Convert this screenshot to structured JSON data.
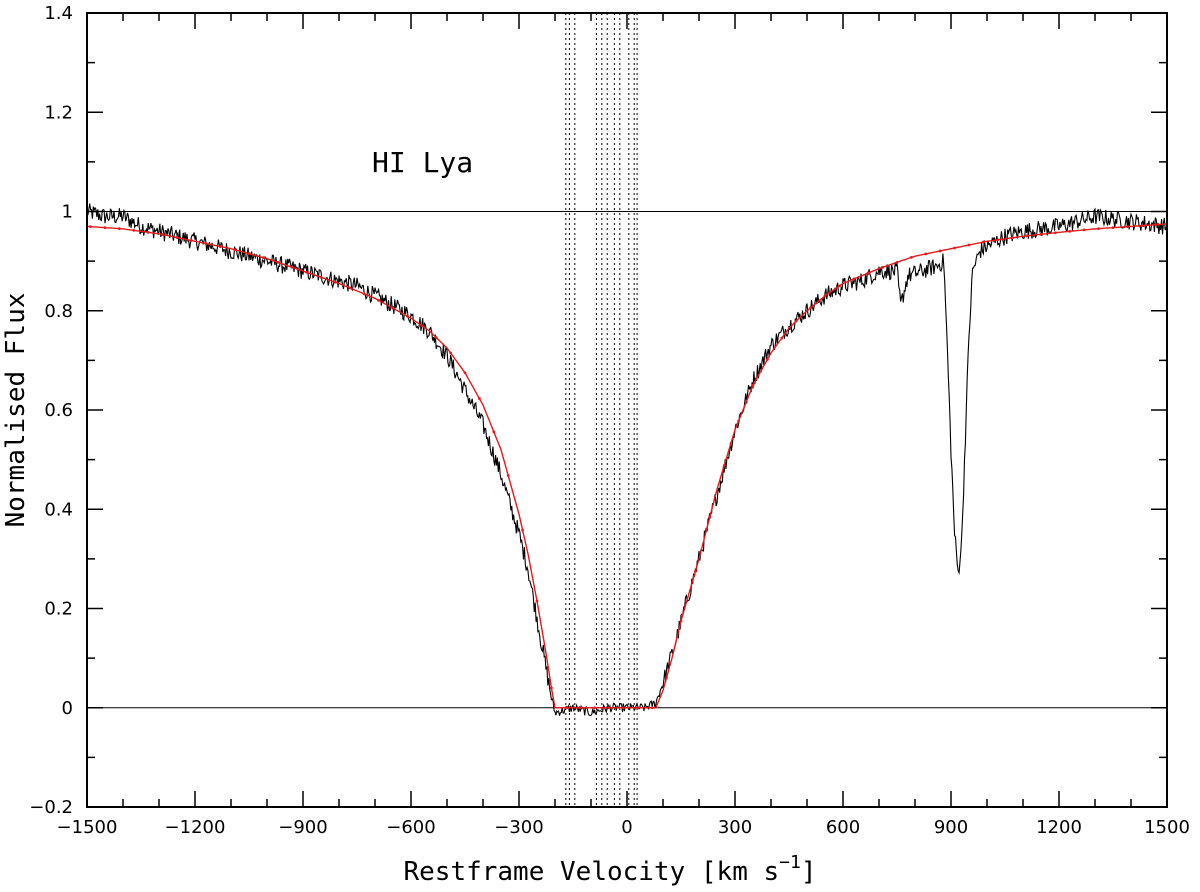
{
  "chart_data": {
    "type": "line",
    "xlabel_main": "Restframe Velocity [km s",
    "xlabel_sup": "−1",
    "xlabel_end": "]",
    "ylabel": "Normalised Flux",
    "annotation": "HI Lya",
    "xlim": [
      -1500,
      1500
    ],
    "ylim": [
      -0.2,
      1.4
    ],
    "x_ticks": [
      -1500,
      -1200,
      -900,
      -600,
      -300,
      0,
      300,
      600,
      900,
      1200,
      1500
    ],
    "x_tick_labels": [
      "−1500",
      "−1200",
      "−900",
      "−600",
      "−300",
      "0",
      "300",
      "600",
      "900",
      "1200",
      "1500"
    ],
    "y_ticks": [
      -0.2,
      0,
      0.2,
      0.4,
      0.6,
      0.8,
      1,
      1.2,
      1.4
    ],
    "y_tick_labels": [
      "−0.2",
      "0",
      "0.2",
      "0.4",
      "0.6",
      "0.8",
      "1",
      "1.2",
      "1.4"
    ],
    "reference_lines": [
      0,
      1
    ],
    "component_velocities": [
      -170,
      -160,
      -145,
      -85,
      -70,
      -55,
      -35,
      -20,
      5,
      20,
      28
    ],
    "series": [
      {
        "role": "observed",
        "color": "#000000",
        "points": [
          [
            -1500,
            1.0
          ],
          [
            -1450,
            0.99
          ],
          [
            -1400,
            0.99
          ],
          [
            -1350,
            0.97
          ],
          [
            -1300,
            0.96
          ],
          [
            -1250,
            0.95
          ],
          [
            -1200,
            0.94
          ],
          [
            -1150,
            0.93
          ],
          [
            -1100,
            0.92
          ],
          [
            -1050,
            0.91
          ],
          [
            -1000,
            0.9
          ],
          [
            -950,
            0.89
          ],
          [
            -900,
            0.88
          ],
          [
            -850,
            0.87
          ],
          [
            -800,
            0.86
          ],
          [
            -750,
            0.85
          ],
          [
            -700,
            0.83
          ],
          [
            -650,
            0.81
          ],
          [
            -600,
            0.79
          ],
          [
            -550,
            0.76
          ],
          [
            -500,
            0.71
          ],
          [
            -450,
            0.64
          ],
          [
            -400,
            0.57
          ],
          [
            -350,
            0.47
          ],
          [
            -300,
            0.35
          ],
          [
            -275,
            0.28
          ],
          [
            -250,
            0.18
          ],
          [
            -225,
            0.08
          ],
          [
            -210,
            0.02
          ],
          [
            -200,
            -0.01
          ],
          [
            -150,
            0.0
          ],
          [
            -100,
            -0.01
          ],
          [
            -50,
            0.0
          ],
          [
            0,
            0.0
          ],
          [
            50,
            0.0
          ],
          [
            80,
            0.01
          ],
          [
            100,
            0.05
          ],
          [
            130,
            0.12
          ],
          [
            160,
            0.2
          ],
          [
            200,
            0.3
          ],
          [
            250,
            0.43
          ],
          [
            300,
            0.56
          ],
          [
            350,
            0.66
          ],
          [
            400,
            0.73
          ],
          [
            450,
            0.77
          ],
          [
            500,
            0.8
          ],
          [
            550,
            0.83
          ],
          [
            600,
            0.85
          ],
          [
            650,
            0.86
          ],
          [
            700,
            0.88
          ],
          [
            750,
            0.88
          ],
          [
            760,
            0.81
          ],
          [
            780,
            0.87
          ],
          [
            820,
            0.88
          ],
          [
            860,
            0.89
          ],
          [
            880,
            0.9
          ],
          [
            890,
            0.72
          ],
          [
            900,
            0.52
          ],
          [
            910,
            0.35
          ],
          [
            920,
            0.27
          ],
          [
            930,
            0.34
          ],
          [
            940,
            0.55
          ],
          [
            950,
            0.75
          ],
          [
            960,
            0.88
          ],
          [
            980,
            0.92
          ],
          [
            1000,
            0.93
          ],
          [
            1050,
            0.95
          ],
          [
            1100,
            0.96
          ],
          [
            1200,
            0.97
          ],
          [
            1300,
            0.99
          ],
          [
            1400,
            0.98
          ],
          [
            1500,
            0.97
          ]
        ]
      },
      {
        "role": "model",
        "color": "#e8191c",
        "points": [
          [
            -1500,
            0.97
          ],
          [
            -1400,
            0.965
          ],
          [
            -1300,
            0.955
          ],
          [
            -1200,
            0.94
          ],
          [
            -1100,
            0.925
          ],
          [
            -1000,
            0.905
          ],
          [
            -900,
            0.88
          ],
          [
            -800,
            0.855
          ],
          [
            -700,
            0.825
          ],
          [
            -600,
            0.785
          ],
          [
            -550,
            0.76
          ],
          [
            -500,
            0.725
          ],
          [
            -450,
            0.675
          ],
          [
            -400,
            0.61
          ],
          [
            -350,
            0.52
          ],
          [
            -300,
            0.39
          ],
          [
            -275,
            0.31
          ],
          [
            -250,
            0.215
          ],
          [
            -225,
            0.11
          ],
          [
            -210,
            0.04
          ],
          [
            -200,
            0.0
          ],
          [
            -150,
            0.0
          ],
          [
            -100,
            0.0
          ],
          [
            -50,
            0.0
          ],
          [
            0,
            0.0
          ],
          [
            50,
            0.0
          ],
          [
            80,
            0.0
          ],
          [
            100,
            0.035
          ],
          [
            125,
            0.1
          ],
          [
            150,
            0.175
          ],
          [
            200,
            0.3
          ],
          [
            250,
            0.44
          ],
          [
            300,
            0.56
          ],
          [
            350,
            0.65
          ],
          [
            400,
            0.715
          ],
          [
            450,
            0.765
          ],
          [
            500,
            0.8
          ],
          [
            550,
            0.83
          ],
          [
            600,
            0.855
          ],
          [
            700,
            0.885
          ],
          [
            800,
            0.91
          ],
          [
            900,
            0.925
          ],
          [
            1000,
            0.94
          ],
          [
            1100,
            0.95
          ],
          [
            1200,
            0.958
          ],
          [
            1300,
            0.965
          ],
          [
            1400,
            0.97
          ],
          [
            1500,
            0.975
          ]
        ]
      }
    ]
  }
}
